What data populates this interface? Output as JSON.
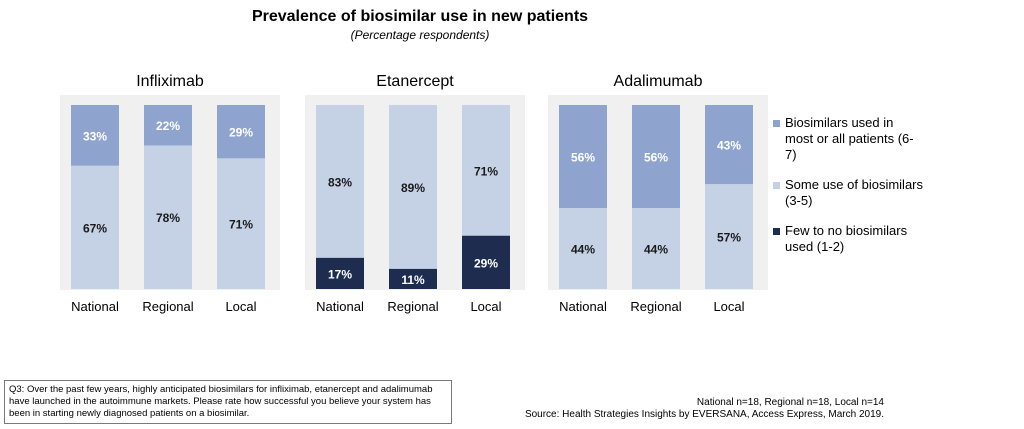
{
  "chart_data": {
    "type": "bar",
    "stacked": true,
    "title": "Prevalence of biosimilar use in new patients",
    "subtitle": "(Percentage respondents)",
    "categories": [
      "National",
      "Regional",
      "Local"
    ],
    "ylim": [
      0,
      100
    ],
    "grid": false,
    "legend_position": "right",
    "panels": [
      {
        "name": "Infliximab",
        "series": [
          {
            "name": "Few to no biosimilars used (1-2)",
            "values": [
              0,
              0,
              0
            ]
          },
          {
            "name": "Some use of biosimilars (3-5)",
            "values": [
              67,
              78,
              71
            ]
          },
          {
            "name": "Biosimilars used in most or all patients (6-7)",
            "values": [
              33,
              22,
              29
            ]
          }
        ]
      },
      {
        "name": "Etanercept",
        "series": [
          {
            "name": "Few to no biosimilars used (1-2)",
            "values": [
              17,
              11,
              29
            ]
          },
          {
            "name": "Some use of biosimilars (3-5)",
            "values": [
              83,
              89,
              71
            ]
          },
          {
            "name": "Biosimilars used in most or all patients (6-7)",
            "values": [
              0,
              0,
              0
            ]
          }
        ]
      },
      {
        "name": "Adalimumab",
        "series": [
          {
            "name": "Few to no biosimilars used (1-2)",
            "values": [
              0,
              0,
              0
            ]
          },
          {
            "name": "Some use of biosimilars (3-5)",
            "values": [
              44,
              44,
              57
            ]
          },
          {
            "name": "Biosimilars used in most or all patients (6-7)",
            "values": [
              56,
              56,
              43
            ]
          }
        ]
      }
    ],
    "colors": {
      "few": "#1e2d4f",
      "some": "#c5d2e6",
      "most": "#8ea4cf",
      "panel_bg": "#f0f0f0"
    }
  },
  "legend": {
    "most_label": "Biosimilars used in most or all patients (6-7)",
    "some_label": "Some use of biosimilars (3-5)",
    "few_label": "Few to no biosimilars used (1-2)"
  },
  "footnote": {
    "question": "Q3: Over the past few years, highly anticipated biosimilars for infliximab, etanercept and adalimumab have launched in the autoimmune markets. Please rate how successful you believe your system has been in starting newly diagnosed patients on a biosimilar.",
    "sample": "National n=18, Regional n=18, Local n=14",
    "source": "Source: Health Strategies Insights by EVERSANA, Access Express, March 2019."
  }
}
